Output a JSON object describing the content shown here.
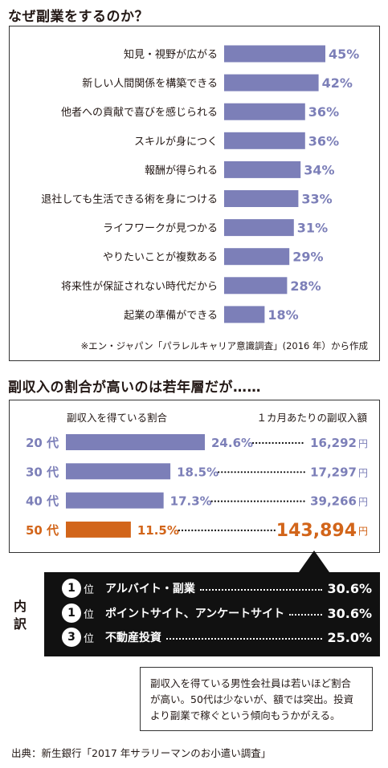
{
  "section1": {
    "heading": "なぜ副業をするのか？",
    "note": "※エン・ジャパン「パラレルキャリア意識調査」(2016 年）から作成"
  },
  "section2": {
    "heading": "副収入の割合が高いのは若年層だが……",
    "col_header_share": "副収入を得ている割合",
    "col_header_amount": "１カ月あたりの副収入額",
    "yen": "円"
  },
  "breakdown": {
    "side_label_1": "内",
    "side_label_2": "訳",
    "rank_suffix": "位",
    "rows": [
      {
        "rank": "1",
        "label": "アルバイト・副業",
        "value": "30.6%"
      },
      {
        "rank": "1",
        "label": "ポイントサイト、アンケートサイト",
        "value": "30.6%"
      },
      {
        "rank": "3",
        "label": "不動産投資",
        "value": "25.0%"
      }
    ]
  },
  "comment": {
    "lines": [
      "副収入を得ている男性会社員は若いほど割合",
      "が高い。50代は少ないが、額では突出。投資",
      "より副業で稼ぐという傾向もうかがえる。"
    ]
  },
  "source": "出典：新生銀行「2017 年サラリーマンのお小遣い調査」",
  "colors": {
    "bar": "#7c7fb8",
    "accent": "#d2651a",
    "text": "#231815"
  },
  "chart_data": [
    {
      "type": "bar",
      "orientation": "horizontal",
      "categories": [
        "知見・視野が広がる",
        "新しい人間関係を構築できる",
        "他者への貢献で喜びを感じられる",
        "スキルが身につく",
        "報酬が得られる",
        "退社しても生活できる術を身につける",
        "ライフワークが見つかる",
        "やりたいことが複数ある",
        "将来性が保証されない時代だから",
        "起業の準備ができる"
      ],
      "values": [
        45,
        42,
        36,
        36,
        34,
        33,
        31,
        29,
        28,
        18
      ],
      "labels": [
        "45%",
        "42%",
        "36%",
        "36%",
        "34%",
        "33%",
        "31%",
        "29%",
        "28%",
        "18%"
      ],
      "title": "なぜ副業をするのか？",
      "xlim": [
        0,
        100
      ],
      "grid": false
    },
    {
      "type": "bar",
      "orientation": "horizontal",
      "categories": [
        "20 代",
        "30 代",
        "40 代",
        "50 代"
      ],
      "values": [
        24.6,
        18.5,
        17.3,
        11.5
      ],
      "labels": [
        "24.6%",
        "18.5%",
        "17.3%",
        "11.5%"
      ],
      "monthly_income_yen": [
        "16,292",
        "17,297",
        "39,266",
        "143,894"
      ],
      "highlight": "50 代",
      "title": "副収入の割合が高いのは若年層だが……",
      "xlim": [
        0,
        24.6
      ],
      "grid": false
    }
  ]
}
